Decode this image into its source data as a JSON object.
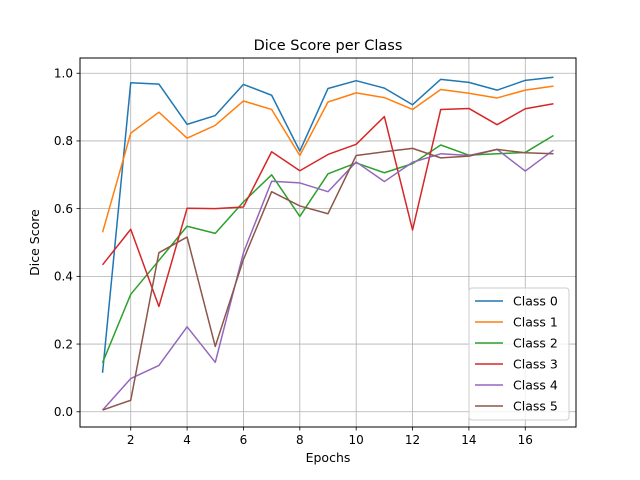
{
  "chart_data": {
    "type": "line",
    "title": "Dice Score per Class",
    "xlabel": "Epochs",
    "ylabel": "Dice Score",
    "xlim": [
      0.2,
      17.8
    ],
    "ylim": [
      -0.045,
      1.045
    ],
    "xticks": [
      2,
      4,
      6,
      8,
      10,
      12,
      14,
      16
    ],
    "yticks": [
      0.0,
      0.2,
      0.4,
      0.6,
      0.8,
      1.0
    ],
    "grid": true,
    "legend_position": "lower-right",
    "x": [
      1,
      2,
      3,
      4,
      5,
      6,
      7,
      8,
      9,
      10,
      11,
      12,
      13,
      14,
      15,
      16,
      17
    ],
    "series": [
      {
        "name": "Class 0",
        "color": "#1f77b4",
        "values": [
          0.115,
          0.972,
          0.968,
          0.849,
          0.875,
          0.967,
          0.935,
          0.77,
          0.955,
          0.978,
          0.956,
          0.907,
          0.982,
          0.973,
          0.95,
          0.979,
          0.988
        ]
      },
      {
        "name": "Class 1",
        "color": "#ff7f0e",
        "values": [
          0.53,
          0.823,
          0.885,
          0.808,
          0.846,
          0.918,
          0.893,
          0.757,
          0.915,
          0.942,
          0.928,
          0.893,
          0.952,
          0.941,
          0.927,
          0.95,
          0.962
        ]
      },
      {
        "name": "Class 2",
        "color": "#2ca02c",
        "values": [
          0.145,
          0.347,
          0.447,
          0.548,
          0.527,
          0.62,
          0.7,
          0.577,
          0.703,
          0.735,
          0.706,
          0.733,
          0.788,
          0.758,
          0.762,
          0.766,
          0.816
        ]
      },
      {
        "name": "Class 3",
        "color": "#d62728",
        "values": [
          0.434,
          0.539,
          0.311,
          0.601,
          0.6,
          0.605,
          0.768,
          0.712,
          0.76,
          0.79,
          0.872,
          0.537,
          0.893,
          0.896,
          0.848,
          0.895,
          0.91
        ]
      },
      {
        "name": "Class 4",
        "color": "#9467bd",
        "values": [
          0.005,
          0.098,
          0.137,
          0.251,
          0.146,
          0.47,
          0.681,
          0.676,
          0.65,
          0.738,
          0.68,
          0.737,
          0.762,
          0.757,
          0.775,
          0.711,
          0.773
        ]
      },
      {
        "name": "Class 5",
        "color": "#8c564b",
        "values": [
          0.005,
          0.034,
          0.47,
          0.516,
          0.193,
          0.45,
          0.65,
          0.608,
          0.585,
          0.757,
          0.768,
          0.778,
          0.75,
          0.755,
          0.775,
          0.765,
          0.762
        ]
      }
    ]
  }
}
